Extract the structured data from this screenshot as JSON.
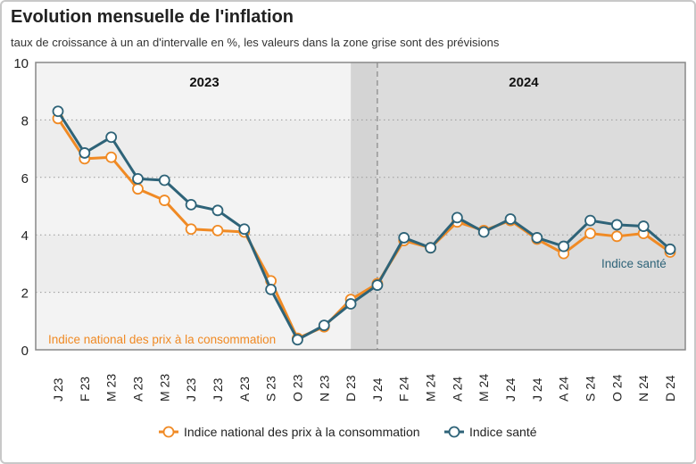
{
  "chart_data": {
    "type": "line",
    "title": "Evolution mensuelle de l'inflation",
    "subtitle": "taux de croissance à un an d'intervalle en %, les valeurs dans la zone grise sont des prévisions",
    "categories": [
      "J 23",
      "F 23",
      "M 23",
      "A 23",
      "M 23",
      "J 23",
      "J 23",
      "A 23",
      "S 23",
      "O 23",
      "N 23",
      "D 23",
      "J 24",
      "F 24",
      "M 24",
      "A 24",
      "M 24",
      "J 24",
      "J 24",
      "A 24",
      "S 24",
      "O 24",
      "N 24",
      "D 24"
    ],
    "year_labels": [
      {
        "label": "2023",
        "from": 0,
        "to": 11
      },
      {
        "label": "2024",
        "from": 12,
        "to": 23
      }
    ],
    "forecast_start_index": 11,
    "ylim": [
      0,
      10
    ],
    "yticks": [
      0,
      2,
      4,
      6,
      8,
      10
    ],
    "grid": true,
    "legend_placement": "bottom",
    "series": [
      {
        "name": "Indice national des prix à la consommation",
        "color": "#f08a24",
        "values": [
          8.05,
          6.65,
          6.7,
          5.6,
          5.2,
          4.2,
          4.15,
          4.1,
          2.4,
          0.4,
          0.8,
          1.75,
          2.3,
          3.8,
          3.55,
          4.45,
          4.15,
          4.5,
          3.85,
          3.35,
          4.05,
          3.95,
          4.05,
          3.4
        ]
      },
      {
        "name": "Indice santé",
        "color": "#2e6378",
        "values": [
          8.3,
          6.85,
          7.4,
          5.95,
          5.9,
          5.05,
          4.85,
          4.2,
          2.1,
          0.35,
          0.85,
          1.6,
          2.25,
          3.9,
          3.55,
          4.6,
          4.1,
          4.55,
          3.9,
          3.6,
          4.5,
          4.35,
          4.3,
          3.5
        ]
      }
    ],
    "annotations": [
      "Indice national des prix à la consommation",
      "Indice santé"
    ]
  }
}
